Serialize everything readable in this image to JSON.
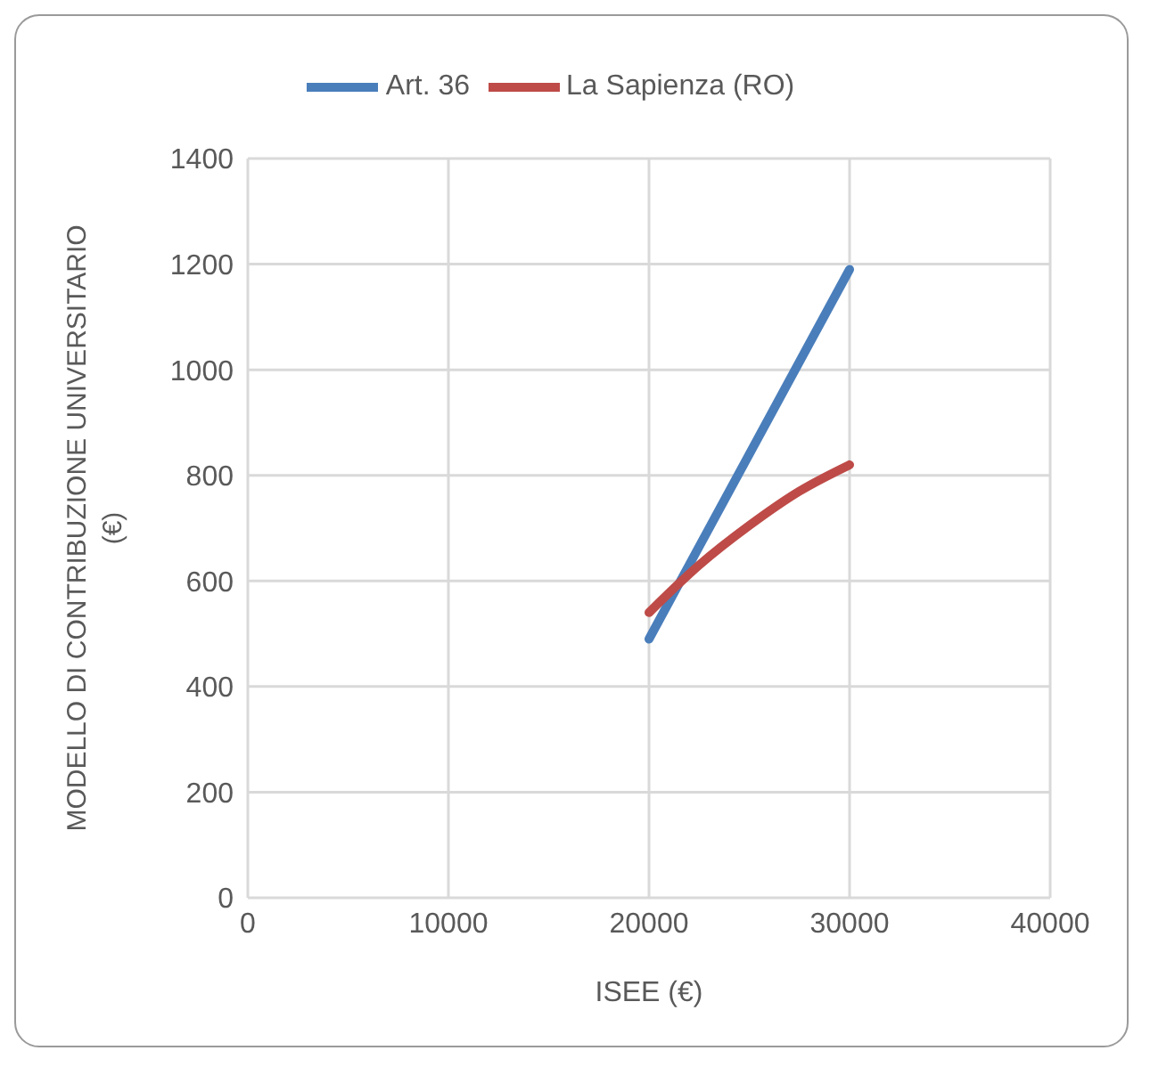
{
  "chart_data": {
    "type": "line",
    "xlabel": "ISEE (€)",
    "ylabel": "MODELLO DI CONTRIBUZIONE UNIVERSITARIO (€)",
    "series": [
      {
        "name": "Art. 36",
        "color": "#4a7ebb",
        "x": [
          20000,
          30000
        ],
        "values": [
          490,
          1190
        ]
      },
      {
        "name": "La Sapienza (RO)",
        "color": "#be4b48",
        "x": [
          20000,
          22500,
          25000,
          27500,
          30000
        ],
        "values": [
          540,
          630,
          705,
          770,
          820
        ]
      }
    ],
    "xlim": [
      0,
      40000
    ],
    "xticks": [
      0,
      10000,
      20000,
      30000,
      40000
    ],
    "ylim": [
      0,
      1400
    ],
    "yticks": [
      0,
      200,
      400,
      600,
      800,
      1000,
      1200,
      1400
    ],
    "grid": true,
    "legend": "top",
    "marker": "none",
    "line_style": "solid"
  }
}
